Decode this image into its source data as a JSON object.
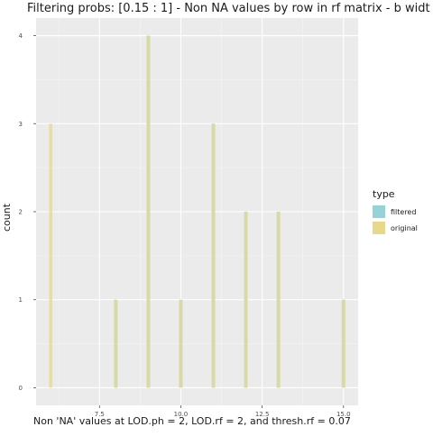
{
  "chart_data": {
    "type": "bar",
    "title": "Filtering probs: [0.15 : 1] - Non NA values by row in rf matrix - b widt",
    "xlabel": "Non 'NA' values at LOD.ph = 2, LOD.rf = 2, and thresh.rf = 0.07",
    "ylabel": "count",
    "xlim": [
      5.55,
      15.45
    ],
    "ylim": [
      -0.2,
      4.2
    ],
    "x_ticks": [
      7.5,
      10.0,
      12.5,
      15.0
    ],
    "x_tick_labels": [
      "7.5",
      "10.0",
      "12.5",
      "15.0"
    ],
    "y_ticks": [
      0,
      1,
      2,
      3,
      4
    ],
    "y_tick_labels": [
      "0",
      "1",
      "2",
      "3",
      "4"
    ],
    "grid": true,
    "legend_position": "right",
    "legend_title": "type",
    "series": [
      {
        "name": "filtered",
        "color": "#96d3d8",
        "x": [
          8,
          9,
          10,
          11,
          12,
          13,
          15
        ],
        "values": [
          1,
          4,
          1,
          3,
          2,
          2,
          1
        ]
      },
      {
        "name": "original",
        "color": "#e8d98a",
        "x": [
          6,
          8,
          9,
          10,
          11,
          12,
          13,
          15
        ],
        "values": [
          3,
          1,
          4,
          1,
          3,
          2,
          2,
          1
        ]
      }
    ]
  }
}
